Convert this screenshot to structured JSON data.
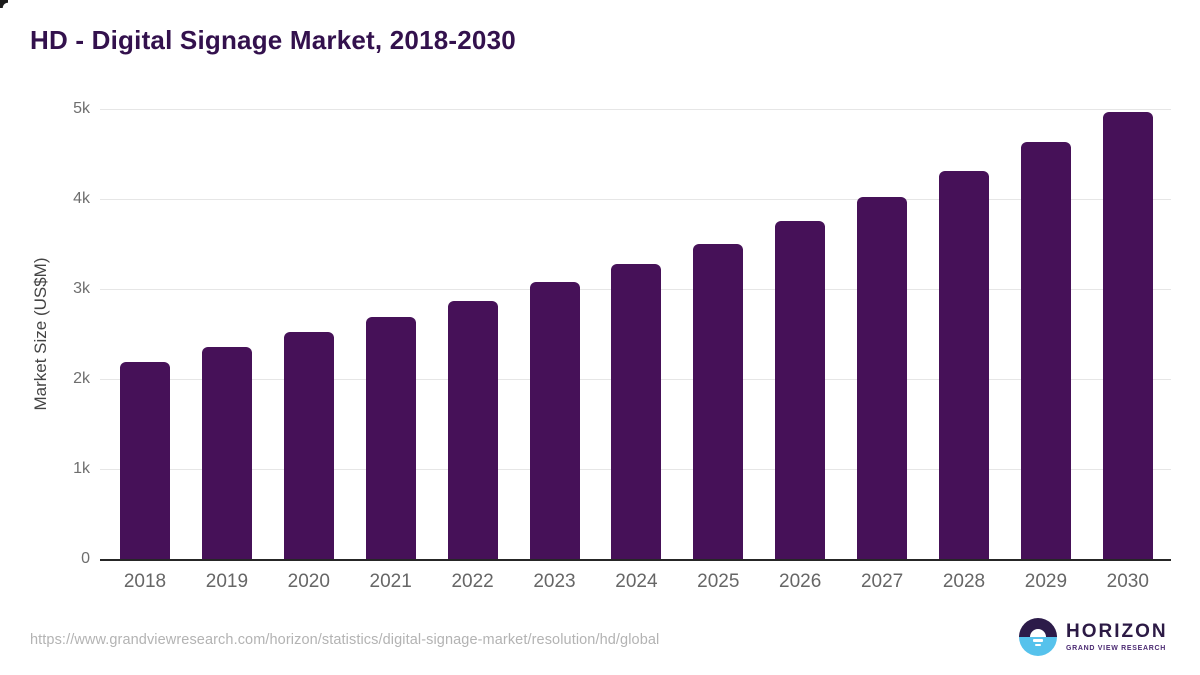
{
  "title": "HD - Digital Signage Market, 2018-2030",
  "chart_data": {
    "type": "bar",
    "title": "HD - Digital Signage Market, 2018-2030",
    "categories": [
      "2018",
      "2019",
      "2020",
      "2021",
      "2022",
      "2023",
      "2024",
      "2025",
      "2026",
      "2027",
      "2028",
      "2029",
      "2030"
    ],
    "values": [
      2190,
      2360,
      2520,
      2690,
      2870,
      3080,
      3280,
      3500,
      3760,
      4020,
      4310,
      4630,
      4970
    ],
    "xlabel": "",
    "ylabel": "Market Size (US$M)",
    "ylim": [
      0,
      5000
    ],
    "yticks": [
      {
        "value": 0,
        "label": "0"
      },
      {
        "value": 1000,
        "label": "1k"
      },
      {
        "value": 2000,
        "label": "2k"
      },
      {
        "value": 3000,
        "label": "3k"
      },
      {
        "value": 4000,
        "label": "4k"
      },
      {
        "value": 5000,
        "label": "5k"
      }
    ],
    "grid": "horizontal",
    "legend": "none",
    "bar_color": "#461158"
  },
  "footer": {
    "source_url": "https://www.grandviewresearch.com/horizon/statistics/digital-signage-market/resolution/hd/global",
    "logo": {
      "brand": "HORIZON",
      "tagline": "GRAND VIEW RESEARCH"
    }
  },
  "colors": {
    "bar": "#461158",
    "title": "#33114d",
    "axis_line": "#262626",
    "gridline": "#e6e6e6",
    "y_tick_label": "#6e6e6e",
    "x_tick_label": "#666666",
    "url_text": "#b3b3b3",
    "logo_purple": "#2c1b49",
    "logo_blue": "#56c2ec"
  }
}
